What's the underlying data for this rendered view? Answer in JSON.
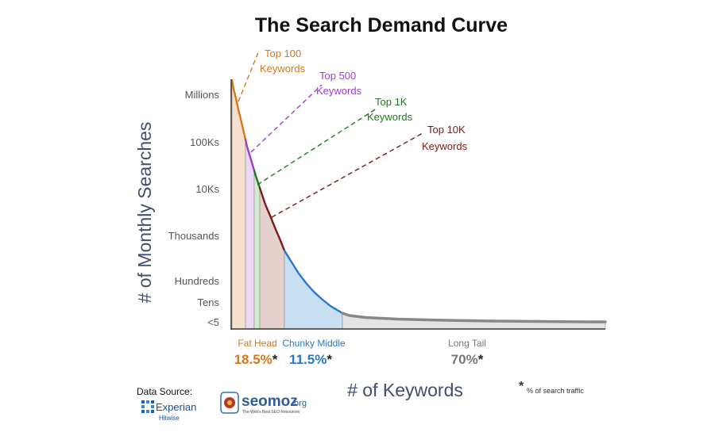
{
  "chart_data": {
    "type": "area",
    "title": "The Search Demand Curve",
    "xlabel": "# of Keywords",
    "ylabel": "# of Monthly Searches",
    "y_ticks": [
      "Millions",
      "100Ks",
      "10Ks",
      "Thousands",
      "Hundreds",
      "Tens",
      "<5"
    ],
    "annotations": [
      {
        "label": "Top 100",
        "sub": "Keywords",
        "color": "#d4781e"
      },
      {
        "label": "Top 500",
        "sub": "Keywords",
        "color": "#9b3fd1"
      },
      {
        "label": "Top 1K",
        "sub": "Keywords",
        "color": "#1f7a1f"
      },
      {
        "label": "Top 10K",
        "sub": "Keywords",
        "color": "#7a1a1a"
      }
    ],
    "segments": [
      {
        "name": "Fat Head",
        "pct": "18.5%",
        "color": "#d4781e"
      },
      {
        "name": "Chunky Middle",
        "pct": "11.5%",
        "color": "#2a78c8"
      },
      {
        "name": "Long Tail",
        "pct": "70%",
        "color": "#777777"
      }
    ],
    "asterisk": "*",
    "footnote": "% of search traffic"
  },
  "source": {
    "label": "Data Source:",
    "experian": "Experian",
    "hitwise": "Hitwise",
    "seomoz": "seomoz",
    "seomoz_tld": ".org",
    "seomoz_tagline": "The Web's Best SEO Resources"
  }
}
